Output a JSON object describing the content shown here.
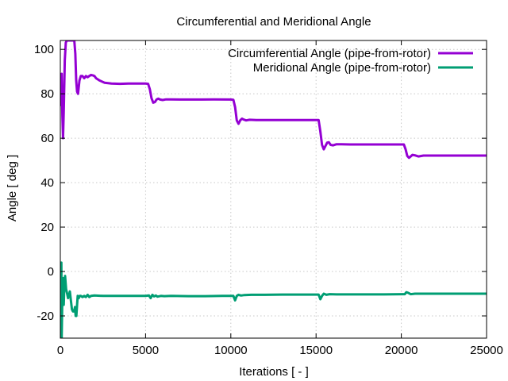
{
  "chart_data": {
    "type": "line",
    "title": "Circumferential and Meridional Angle",
    "xlabel": "Iterations [ - ]",
    "ylabel": "Angle [ deg ]",
    "xlim": [
      0,
      25000
    ],
    "ylim": [
      -30,
      104
    ],
    "x_ticks": [
      0,
      5000,
      10000,
      15000,
      20000,
      25000
    ],
    "y_ticks": [
      -20,
      0,
      20,
      40,
      60,
      80,
      100
    ],
    "grid": true,
    "legend_position": "top-right",
    "series": [
      {
        "name": "Circumferential Angle (pipe-from-rotor)",
        "color": "#9400d3",
        "points": [
          [
            0,
            85
          ],
          [
            20,
            88
          ],
          [
            50,
            75
          ],
          [
            80,
            89
          ],
          [
            120,
            70
          ],
          [
            160,
            60
          ],
          [
            200,
            72
          ],
          [
            260,
            95
          ],
          [
            320,
            103
          ],
          [
            380,
            104
          ],
          [
            480,
            104
          ],
          [
            560,
            104
          ],
          [
            620,
            104
          ],
          [
            700,
            104
          ],
          [
            760,
            104
          ],
          [
            820,
            104
          ],
          [
            880,
            98
          ],
          [
            930,
            86
          ],
          [
            980,
            81
          ],
          [
            1040,
            80
          ],
          [
            1120,
            86
          ],
          [
            1200,
            88
          ],
          [
            1300,
            88
          ],
          [
            1400,
            87
          ],
          [
            1500,
            88
          ],
          [
            1600,
            87.5
          ],
          [
            1700,
            88
          ],
          [
            1800,
            88.5
          ],
          [
            1900,
            88.3
          ],
          [
            2000,
            88
          ],
          [
            2100,
            87
          ],
          [
            2300,
            86
          ],
          [
            2600,
            85
          ],
          [
            3000,
            84.6
          ],
          [
            3500,
            84.5
          ],
          [
            4000,
            84.6
          ],
          [
            4500,
            84.6
          ],
          [
            5000,
            84.6
          ],
          [
            5150,
            84.5
          ],
          [
            5250,
            82
          ],
          [
            5350,
            78
          ],
          [
            5450,
            76
          ],
          [
            5550,
            76.3
          ],
          [
            5650,
            77.5
          ],
          [
            5750,
            77.8
          ],
          [
            5850,
            77.4
          ],
          [
            6000,
            77.2
          ],
          [
            6200,
            77.5
          ],
          [
            6500,
            77.5
          ],
          [
            7000,
            77.4
          ],
          [
            8000,
            77.4
          ],
          [
            9000,
            77.5
          ],
          [
            10000,
            77.4
          ],
          [
            10150,
            77.3
          ],
          [
            10250,
            74
          ],
          [
            10350,
            68
          ],
          [
            10450,
            66.5
          ],
          [
            10550,
            68
          ],
          [
            10650,
            68.8
          ],
          [
            10750,
            68.4
          ],
          [
            10900,
            68
          ],
          [
            11100,
            68.3
          ],
          [
            11500,
            68.2
          ],
          [
            12500,
            68.2
          ],
          [
            13500,
            68.2
          ],
          [
            14500,
            68.2
          ],
          [
            15150,
            68.2
          ],
          [
            15250,
            63
          ],
          [
            15350,
            57
          ],
          [
            15450,
            55
          ],
          [
            15550,
            56.5
          ],
          [
            15650,
            58
          ],
          [
            15750,
            58.2
          ],
          [
            15850,
            57
          ],
          [
            16000,
            56.8
          ],
          [
            16200,
            57.3
          ],
          [
            16500,
            57.3
          ],
          [
            17000,
            57.2
          ],
          [
            18000,
            57.2
          ],
          [
            19000,
            57.2
          ],
          [
            20150,
            57.2
          ],
          [
            20250,
            55
          ],
          [
            20350,
            52
          ],
          [
            20450,
            51.2
          ],
          [
            20550,
            51.8
          ],
          [
            20650,
            52.5
          ],
          [
            20800,
            52.3
          ],
          [
            21000,
            51.8
          ],
          [
            21300,
            52.2
          ],
          [
            22000,
            52.2
          ],
          [
            23000,
            52.2
          ],
          [
            24000,
            52.2
          ],
          [
            25000,
            52.2
          ]
        ]
      },
      {
        "name": "Meridional Angle (pipe-from-rotor)",
        "color": "#009e73",
        "points": [
          [
            0,
            -30
          ],
          [
            20,
            -25
          ],
          [
            40,
            0
          ],
          [
            60,
            4
          ],
          [
            80,
            -30
          ],
          [
            120,
            -10
          ],
          [
            160,
            -3
          ],
          [
            200,
            -15
          ],
          [
            240,
            -5
          ],
          [
            280,
            -2
          ],
          [
            340,
            -8
          ],
          [
            400,
            -10
          ],
          [
            450,
            -12
          ],
          [
            500,
            -11
          ],
          [
            560,
            -9
          ],
          [
            620,
            -13
          ],
          [
            680,
            -17
          ],
          [
            740,
            -18
          ],
          [
            800,
            -18
          ],
          [
            860,
            -16
          ],
          [
            900,
            -20
          ],
          [
            940,
            -20
          ],
          [
            980,
            -15
          ],
          [
            1020,
            -11
          ],
          [
            1080,
            -12
          ],
          [
            1140,
            -11
          ],
          [
            1200,
            -11
          ],
          [
            1300,
            -11.5
          ],
          [
            1400,
            -11
          ],
          [
            1500,
            -11.5
          ],
          [
            1600,
            -10.5
          ],
          [
            1700,
            -11.5
          ],
          [
            1800,
            -11
          ],
          [
            2000,
            -10.8
          ],
          [
            2500,
            -11
          ],
          [
            3000,
            -11
          ],
          [
            3500,
            -11
          ],
          [
            4000,
            -11
          ],
          [
            4500,
            -11
          ],
          [
            5000,
            -11
          ],
          [
            5200,
            -10.8
          ],
          [
            5300,
            -12
          ],
          [
            5400,
            -10.5
          ],
          [
            5500,
            -11.2
          ],
          [
            5600,
            -10.8
          ],
          [
            5700,
            -11.3
          ],
          [
            5900,
            -11
          ],
          [
            6100,
            -11.1
          ],
          [
            6500,
            -11
          ],
          [
            7500,
            -11.1
          ],
          [
            8500,
            -11.1
          ],
          [
            9500,
            -11
          ],
          [
            10000,
            -11
          ],
          [
            10150,
            -11
          ],
          [
            10250,
            -13
          ],
          [
            10350,
            -11
          ],
          [
            10450,
            -10.5
          ],
          [
            10600,
            -10.8
          ],
          [
            10800,
            -10.6
          ],
          [
            11200,
            -10.5
          ],
          [
            12000,
            -10.5
          ],
          [
            13000,
            -10.4
          ],
          [
            14000,
            -10.4
          ],
          [
            15150,
            -10.4
          ],
          [
            15250,
            -12.5
          ],
          [
            15350,
            -11
          ],
          [
            15450,
            -10
          ],
          [
            15600,
            -10.5
          ],
          [
            15800,
            -10.2
          ],
          [
            16200,
            -10.3
          ],
          [
            17000,
            -10.3
          ],
          [
            18000,
            -10.3
          ],
          [
            19000,
            -10.3
          ],
          [
            20100,
            -10.2
          ],
          [
            20200,
            -10.2
          ],
          [
            20300,
            -9.3
          ],
          [
            20400,
            -9.6
          ],
          [
            20550,
            -10.2
          ],
          [
            20800,
            -10
          ],
          [
            21200,
            -10
          ],
          [
            22000,
            -10
          ],
          [
            23000,
            -10
          ],
          [
            24000,
            -10
          ],
          [
            25000,
            -10
          ]
        ]
      }
    ]
  }
}
